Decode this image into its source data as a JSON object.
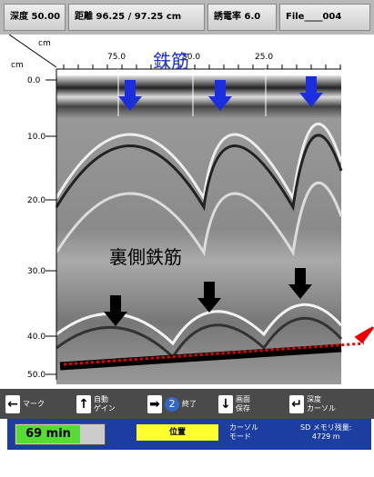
{
  "header": {
    "depth": "深度 50.00",
    "distance": "距離 96.25 / 97.25 cm",
    "permittivity": "誘電率 6.0",
    "file": "File____004"
  },
  "axes": {
    "top_unit": "cm",
    "left_unit": "cm",
    "x_ticks": [
      "75.0",
      "50.0",
      "25.0"
    ],
    "y_ticks": [
      "0.0",
      "10.0",
      "20.0",
      "30.0",
      "40.0",
      "50.0"
    ]
  },
  "annotations": {
    "rebar": "鉄筋",
    "back_rebar": "裏側鉄筋"
  },
  "buttons": [
    {
      "lines": [
        "マーク"
      ]
    },
    {
      "lines": [
        "自動",
        "ゲイン"
      ]
    },
    {
      "icon": "2",
      "lines": [
        "終了"
      ]
    },
    {
      "lines": [
        "画面",
        "保存"
      ]
    },
    {
      "lines": [
        "深度",
        "カーソル"
      ]
    }
  ],
  "status": {
    "time": "69 min",
    "position": "位置",
    "cursor_mode": [
      "カーソル",
      "モード"
    ],
    "sd_memory": [
      "SD メモリ残量:",
      "4729 m"
    ]
  }
}
